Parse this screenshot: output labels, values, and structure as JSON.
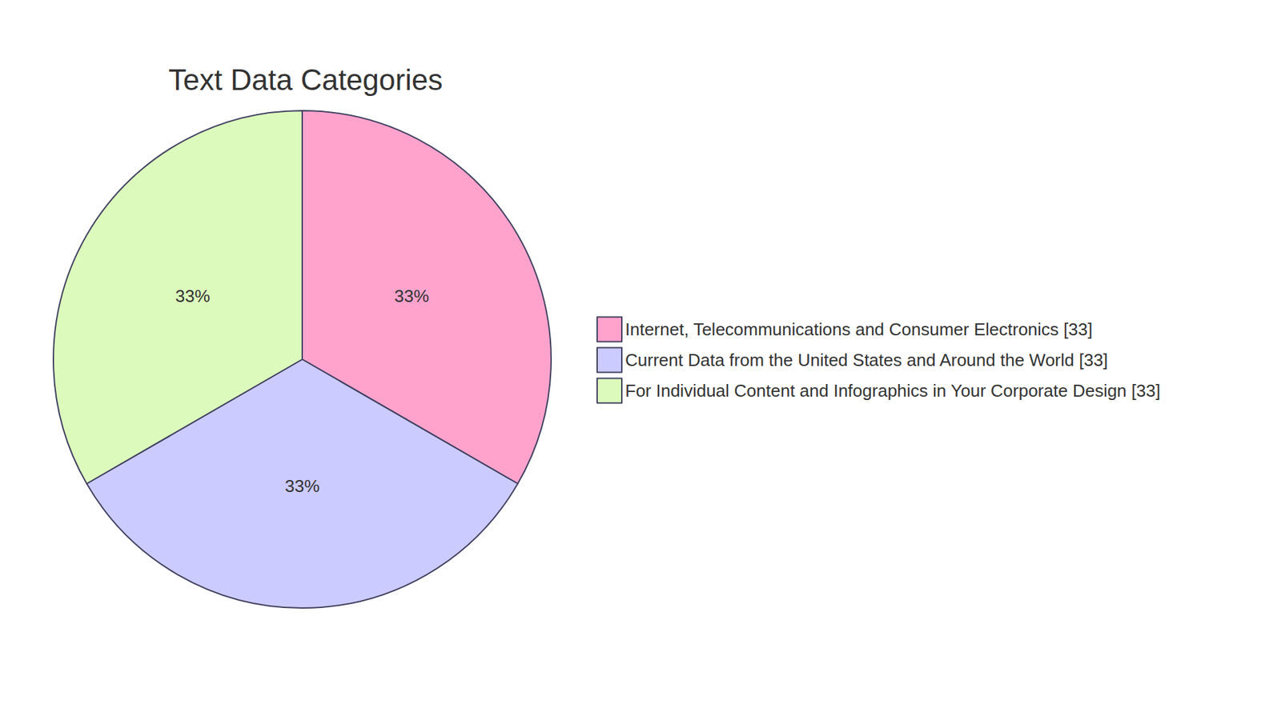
{
  "chart_data": {
    "type": "pie",
    "title": "Text Data Categories",
    "categories": [
      "Internet, Telecommunications and Consumer Electronics [33]",
      "Current Data from the United States and Around the World [33]",
      "For Individual Content and Infographics in Your Corporate Design [33]"
    ],
    "values": [
      33,
      33,
      33
    ],
    "value_labels": [
      "33%",
      "33%",
      "33%"
    ],
    "colors": [
      "#ffa3cd",
      "#cbcbff",
      "#dcfabc"
    ],
    "data_labels": true,
    "legend": "right"
  }
}
